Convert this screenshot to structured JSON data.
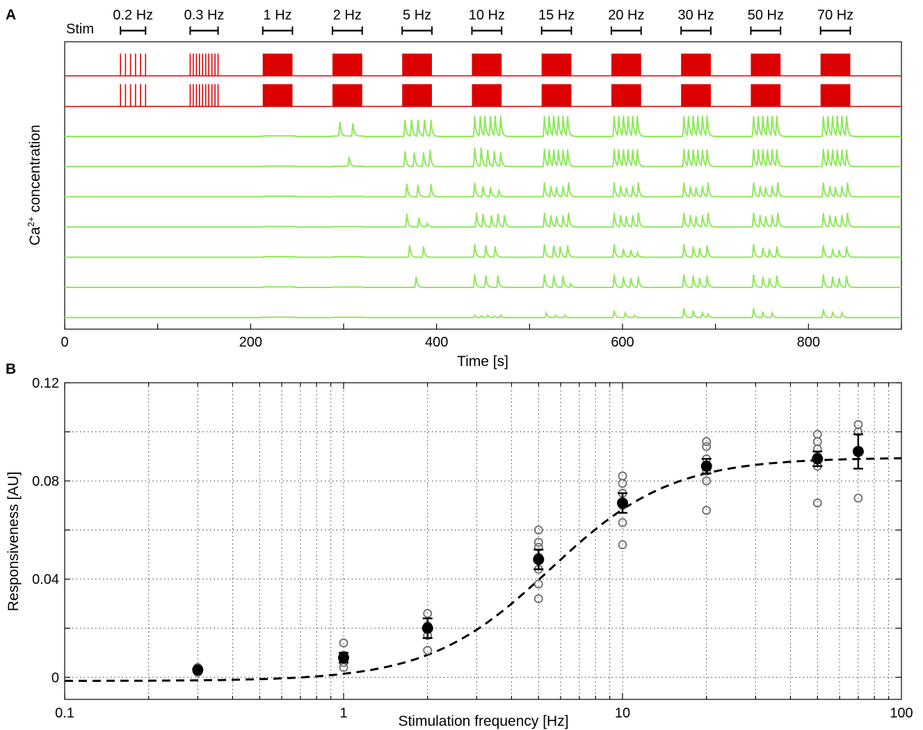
{
  "panels": {
    "a_label": "A",
    "b_label": "B"
  },
  "stim_label": "Stim",
  "chart_data": [
    {
      "type": "line",
      "panel": "A",
      "xlabel": "Time [s]",
      "ylabel": "Ca2+ concentration",
      "ylabel_parts": {
        "base": "Ca",
        "sup": "2+",
        "rest": " concentration"
      },
      "xlim": [
        0,
        900
      ],
      "xticks": [
        0,
        200,
        400,
        600,
        800
      ],
      "stimulation_blocks": [
        {
          "label": "0.2 Hz",
          "start": 60,
          "end": 87,
          "type": "pulses",
          "pulse_count": 6
        },
        {
          "label": "0.3 Hz",
          "start": 135,
          "end": 165,
          "type": "pulses",
          "pulse_count": 10
        },
        {
          "label": "1 Hz",
          "start": 213,
          "end": 245,
          "type": "block"
        },
        {
          "label": "2 Hz",
          "start": 288,
          "end": 320,
          "type": "block"
        },
        {
          "label": "5 Hz",
          "start": 363,
          "end": 395,
          "type": "block"
        },
        {
          "label": "10 Hz",
          "start": 438,
          "end": 470,
          "type": "block"
        },
        {
          "label": "15 Hz",
          "start": 513,
          "end": 545,
          "type": "block"
        },
        {
          "label": "20 Hz",
          "start": 588,
          "end": 620,
          "type": "block"
        },
        {
          "label": "30 Hz",
          "start": 663,
          "end": 695,
          "type": "block"
        },
        {
          "label": "50 Hz",
          "start": 738,
          "end": 770,
          "type": "block"
        },
        {
          "label": "70 Hz",
          "start": 813,
          "end": 845,
          "type": "block"
        }
      ],
      "stim_rows": 2,
      "traces": [
        {
          "peaks": [
            [
              296,
              0.6
            ],
            [
              310,
              0.55
            ],
            [
              366,
              0.7
            ],
            [
              373,
              0.7
            ],
            [
              380,
              0.7
            ],
            [
              387,
              0.7
            ],
            [
              394,
              0.7
            ],
            [
              441,
              0.85
            ],
            [
              447,
              0.85
            ],
            [
              452,
              0.85
            ],
            [
              458,
              0.85
            ],
            [
              463,
              0.85
            ],
            [
              469,
              0.85
            ],
            [
              516,
              0.85
            ],
            [
              521,
              0.85
            ],
            [
              526,
              0.85
            ],
            [
              531,
              0.85
            ],
            [
              536,
              0.85
            ],
            [
              541,
              0.85
            ],
            [
              591,
              0.85
            ],
            [
              596,
              0.85
            ],
            [
              601,
              0.85
            ],
            [
              606,
              0.85
            ],
            [
              611,
              0.85
            ],
            [
              616,
              0.85
            ],
            [
              666,
              0.85
            ],
            [
              671,
              0.85
            ],
            [
              676,
              0.85
            ],
            [
              681,
              0.85
            ],
            [
              686,
              0.85
            ],
            [
              691,
              0.85
            ],
            [
              741,
              0.85
            ],
            [
              746,
              0.85
            ],
            [
              751,
              0.85
            ],
            [
              756,
              0.85
            ],
            [
              761,
              0.85
            ],
            [
              766,
              0.85
            ],
            [
              816,
              0.85
            ],
            [
              821,
              0.85
            ],
            [
              826,
              0.85
            ],
            [
              831,
              0.85
            ],
            [
              836,
              0.85
            ],
            [
              841,
              0.85
            ]
          ]
        },
        {
          "peaks": [
            [
              306,
              0.4
            ],
            [
              366,
              0.65
            ],
            [
              376,
              0.6
            ],
            [
              386,
              0.6
            ],
            [
              393,
              0.7
            ],
            [
              441,
              0.8
            ],
            [
              448,
              0.8
            ],
            [
              455,
              0.7
            ],
            [
              462,
              0.65
            ],
            [
              469,
              0.6
            ],
            [
              516,
              0.75
            ],
            [
              521,
              0.7
            ],
            [
              526,
              0.7
            ],
            [
              531,
              0.7
            ],
            [
              536,
              0.7
            ],
            [
              541,
              0.7
            ],
            [
              591,
              0.75
            ],
            [
              596,
              0.7
            ],
            [
              601,
              0.7
            ],
            [
              606,
              0.7
            ],
            [
              611,
              0.7
            ],
            [
              616,
              0.7
            ],
            [
              666,
              0.75
            ],
            [
              671,
              0.7
            ],
            [
              676,
              0.7
            ],
            [
              681,
              0.7
            ],
            [
              686,
              0.7
            ],
            [
              691,
              0.7
            ],
            [
              741,
              0.75
            ],
            [
              746,
              0.7
            ],
            [
              751,
              0.7
            ],
            [
              756,
              0.7
            ],
            [
              761,
              0.7
            ],
            [
              766,
              0.7
            ],
            [
              816,
              0.75
            ],
            [
              821,
              0.7
            ],
            [
              826,
              0.7
            ],
            [
              831,
              0.7
            ],
            [
              836,
              0.7
            ],
            [
              841,
              0.7
            ]
          ]
        },
        {
          "peaks": [
            [
              368,
              0.55
            ],
            [
              380,
              0.5
            ],
            [
              394,
              0.55
            ],
            [
              441,
              0.6
            ],
            [
              450,
              0.45
            ],
            [
              458,
              0.4
            ],
            [
              467,
              0.3
            ],
            [
              516,
              0.6
            ],
            [
              523,
              0.45
            ],
            [
              529,
              0.4
            ],
            [
              536,
              0.45
            ],
            [
              542,
              0.6
            ],
            [
              591,
              0.6
            ],
            [
              598,
              0.45
            ],
            [
              604,
              0.4
            ],
            [
              611,
              0.45
            ],
            [
              617,
              0.6
            ],
            [
              666,
              0.6
            ],
            [
              673,
              0.45
            ],
            [
              679,
              0.4
            ],
            [
              686,
              0.45
            ],
            [
              692,
              0.6
            ],
            [
              741,
              0.6
            ],
            [
              748,
              0.45
            ],
            [
              754,
              0.4
            ],
            [
              761,
              0.45
            ],
            [
              767,
              0.6
            ],
            [
              816,
              0.6
            ],
            [
              823,
              0.45
            ],
            [
              829,
              0.4
            ],
            [
              836,
              0.45
            ],
            [
              842,
              0.6
            ]
          ]
        },
        {
          "peaks": [
            [
              368,
              0.55
            ],
            [
              381,
              0.4
            ],
            [
              390,
              0.15
            ],
            [
              443,
              0.6
            ],
            [
              450,
              0.55
            ],
            [
              459,
              0.5
            ],
            [
              466,
              0.55
            ],
            [
              473,
              0.5
            ],
            [
              516,
              0.6
            ],
            [
              523,
              0.5
            ],
            [
              529,
              0.45
            ],
            [
              536,
              0.5
            ],
            [
              542,
              0.6
            ],
            [
              591,
              0.6
            ],
            [
              598,
              0.5
            ],
            [
              604,
              0.45
            ],
            [
              611,
              0.5
            ],
            [
              617,
              0.6
            ],
            [
              666,
              0.6
            ],
            [
              673,
              0.5
            ],
            [
              679,
              0.45
            ],
            [
              686,
              0.5
            ],
            [
              692,
              0.6
            ],
            [
              741,
              0.6
            ],
            [
              748,
              0.5
            ],
            [
              754,
              0.45
            ],
            [
              761,
              0.5
            ],
            [
              767,
              0.6
            ],
            [
              816,
              0.6
            ],
            [
              823,
              0.5
            ],
            [
              829,
              0.45
            ],
            [
              836,
              0.5
            ],
            [
              842,
              0.6
            ]
          ]
        },
        {
          "peaks": [
            [
              371,
              0.5
            ],
            [
              386,
              0.45
            ],
            [
              441,
              0.55
            ],
            [
              453,
              0.5
            ],
            [
              463,
              0.45
            ],
            [
              516,
              0.55
            ],
            [
              526,
              0.5
            ],
            [
              533,
              0.45
            ],
            [
              541,
              0.5
            ],
            [
              591,
              0.55
            ],
            [
              601,
              0.35
            ],
            [
              609,
              0.3
            ],
            [
              616,
              0.2
            ],
            [
              666,
              0.55
            ],
            [
              676,
              0.45
            ],
            [
              683,
              0.4
            ],
            [
              691,
              0.5
            ],
            [
              741,
              0.55
            ],
            [
              751,
              0.4
            ],
            [
              758,
              0.35
            ],
            [
              766,
              0.45
            ],
            [
              816,
              0.5
            ],
            [
              826,
              0.35
            ],
            [
              833,
              0.3
            ],
            [
              841,
              0.45
            ]
          ]
        },
        {
          "peaks": [
            [
              378,
              0.45
            ],
            [
              441,
              0.55
            ],
            [
              453,
              0.5
            ],
            [
              466,
              0.5
            ],
            [
              516,
              0.55
            ],
            [
              526,
              0.5
            ],
            [
              536,
              0.5
            ],
            [
              544,
              0.15
            ],
            [
              591,
              0.55
            ],
            [
              601,
              0.45
            ],
            [
              609,
              0.4
            ],
            [
              617,
              0.45
            ],
            [
              666,
              0.55
            ],
            [
              676,
              0.5
            ],
            [
              683,
              0.4
            ],
            [
              691,
              0.5
            ],
            [
              741,
              0.55
            ],
            [
              751,
              0.45
            ],
            [
              758,
              0.4
            ],
            [
              766,
              0.5
            ],
            [
              816,
              0.55
            ],
            [
              826,
              0.45
            ],
            [
              833,
              0.4
            ],
            [
              841,
              0.5
            ]
          ]
        },
        {
          "peaks": [
            [
              441,
              0.1
            ],
            [
              448,
              0.08
            ],
            [
              455,
              0.1
            ],
            [
              462,
              0.08
            ],
            [
              469,
              0.1
            ],
            [
              518,
              0.2
            ],
            [
              528,
              0.1
            ],
            [
              538,
              0.1
            ],
            [
              591,
              0.3
            ],
            [
              603,
              0.2
            ],
            [
              613,
              0.1
            ],
            [
              666,
              0.4
            ],
            [
              676,
              0.3
            ],
            [
              686,
              0.2
            ],
            [
              692,
              0.15
            ],
            [
              741,
              0.4
            ],
            [
              751,
              0.25
            ],
            [
              761,
              0.2
            ],
            [
              816,
              0.35
            ],
            [
              826,
              0.25
            ],
            [
              836,
              0.2
            ]
          ]
        }
      ]
    },
    {
      "type": "scatter",
      "panel": "B",
      "xlabel": "Stimulation frequency [Hz]",
      "ylabel": "Responsiveness [AU]",
      "xscale": "log",
      "xlim": [
        0.1,
        100
      ],
      "ylim": [
        -0.009,
        0.12
      ],
      "xticks": [
        0.1,
        1,
        10,
        100
      ],
      "xtick_labels": [
        "0.1",
        "1",
        "10",
        "100"
      ],
      "yticks": [
        0,
        0.04,
        0.08,
        0.12
      ],
      "ytick_labels": [
        "0",
        "0.04",
        "0.08",
        "0.12"
      ],
      "grid": true,
      "individual_points": [
        {
          "x": 0.3,
          "values": [
            0.002,
            0.003,
            0.004
          ]
        },
        {
          "x": 1,
          "values": [
            0.004,
            0.006,
            0.008,
            0.009,
            0.014
          ]
        },
        {
          "x": 2,
          "values": [
            0.011,
            0.017,
            0.021,
            0.026
          ]
        },
        {
          "x": 5,
          "values": [
            0.032,
            0.038,
            0.044,
            0.049,
            0.053,
            0.055,
            0.06
          ]
        },
        {
          "x": 10,
          "values": [
            0.054,
            0.063,
            0.07,
            0.075,
            0.079,
            0.082
          ]
        },
        {
          "x": 20,
          "values": [
            0.068,
            0.08,
            0.084,
            0.089,
            0.094,
            0.096
          ]
        },
        {
          "x": 50,
          "values": [
            0.071,
            0.086,
            0.09,
            0.093,
            0.096,
            0.099
          ]
        },
        {
          "x": 70,
          "values": [
            0.073,
            0.092,
            0.1,
            0.103
          ]
        }
      ],
      "mean_points": [
        {
          "x": 0.3,
          "mean": 0.003,
          "error": 0.001
        },
        {
          "x": 1,
          "mean": 0.008,
          "error": 0.002
        },
        {
          "x": 2,
          "mean": 0.02,
          "error": 0.004
        },
        {
          "x": 5,
          "mean": 0.048,
          "error": 0.004
        },
        {
          "x": 10,
          "mean": 0.071,
          "error": 0.004
        },
        {
          "x": 20,
          "mean": 0.086,
          "error": 0.003
        },
        {
          "x": 50,
          "mean": 0.089,
          "error": 0.003
        },
        {
          "x": 70,
          "mean": 0.092,
          "error": 0.007
        }
      ],
      "fit_curve": {
        "style": "dashed",
        "max": 0.091,
        "half_frequency": 5.5,
        "hill_coefficient": 2.0
      }
    }
  ]
}
